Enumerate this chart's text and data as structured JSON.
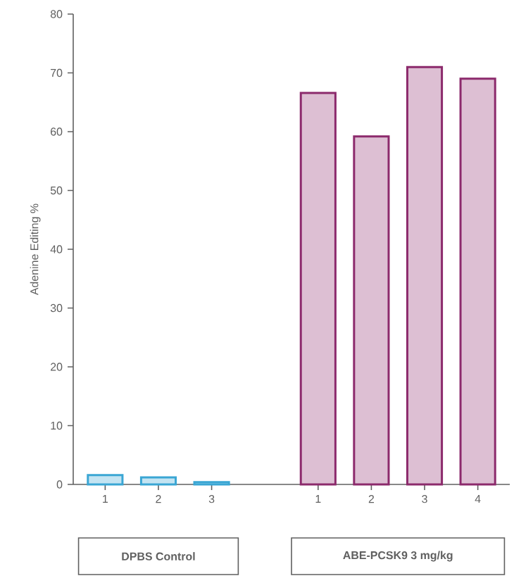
{
  "chart_data": {
    "type": "bar",
    "ylabel": "Adenine Editing %",
    "categories": [
      "1",
      "2",
      "3",
      null,
      "1",
      "2",
      "3",
      "4"
    ],
    "series": [
      {
        "color": "#3aa6d4",
        "values": [
          1.6,
          1.2,
          0.4,
          null,
          null,
          null,
          null,
          null
        ]
      },
      {
        "color": "#8c2a6c",
        "values": [
          null,
          null,
          null,
          null,
          66.6,
          59.2,
          71.0,
          69.0
        ]
      }
    ],
    "annotations": [
      "DPBS Control",
      "ABE-PCSK9 3 mg/kg"
    ],
    "ylim": [
      0,
      80
    ],
    "yticks": [
      0,
      10,
      20,
      30,
      40,
      50,
      60,
      70,
      80
    ]
  }
}
